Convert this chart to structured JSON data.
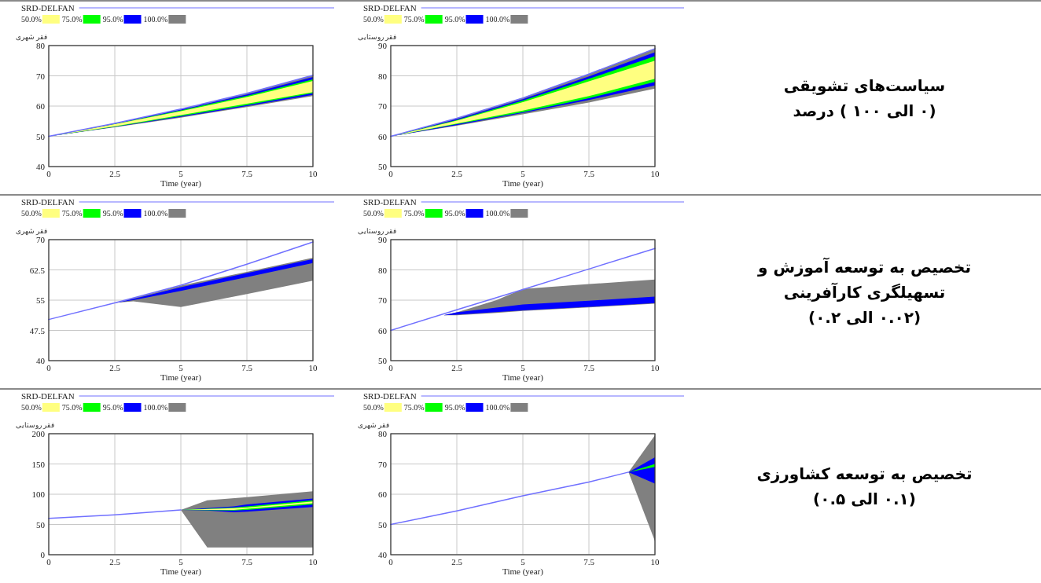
{
  "chart_data": [
    {
      "type": "area",
      "xlabel": "Time (year)",
      "ylabel": "فقر شهری",
      "xlim": [
        0,
        10
      ],
      "xticks": [
        0,
        2.5,
        5,
        7.5,
        10
      ],
      "ylim": [
        40,
        80
      ],
      "yticks": [
        40,
        50,
        60,
        70,
        80
      ],
      "grid": true,
      "legend": "top",
      "series": [
        {
          "name": "SRD-DELFAN",
          "type": "line",
          "color": "#7070ff",
          "x": [
            0,
            2.5,
            5,
            7.5,
            10
          ],
          "values": [
            50,
            54.3,
            59.0,
            64.2,
            70.2
          ]
        },
        {
          "name": "50.0%",
          "type": "area",
          "color": "#ffff80",
          "x": [
            0,
            2.5,
            5,
            7.5,
            10
          ],
          "values": [
            null,
            null,
            null,
            null,
            null
          ],
          "lower": [
            50,
            53.3,
            57.0,
            60.8,
            64.6
          ],
          "upper": [
            50,
            54.0,
            58.3,
            63.0,
            68.3
          ]
        },
        {
          "name": "75.0%",
          "type": "area",
          "color": "#00ff00",
          "x": [
            0,
            2.5,
            5,
            7.5,
            10
          ],
          "values": [
            null,
            null,
            null,
            null,
            null
          ],
          "lower": [
            50,
            53.2,
            56.7,
            60.3,
            64.3
          ],
          "upper": [
            50,
            54.1,
            58.6,
            63.4,
            68.8
          ]
        },
        {
          "name": "95.0%",
          "type": "area",
          "color": "#0000ff",
          "x": [
            0,
            2.5,
            5,
            7.5,
            10
          ],
          "values": [
            null,
            null,
            null,
            null,
            null
          ],
          "lower": [
            50,
            53.1,
            56.4,
            60.0,
            63.7
          ],
          "upper": [
            50,
            54.2,
            58.8,
            63.8,
            69.6
          ]
        },
        {
          "name": "100.0%",
          "type": "area",
          "color": "#808080",
          "x": [
            0,
            2.5,
            5,
            7.5,
            10
          ],
          "values": [
            null,
            null,
            null,
            null,
            null
          ],
          "lower": [
            50,
            53.0,
            56.2,
            59.7,
            63.3
          ],
          "upper": [
            50,
            54.3,
            59.0,
            64.2,
            70.2
          ]
        }
      ]
    },
    {
      "type": "area",
      "xlabel": "Time (year)",
      "ylabel": "فقر روستایی",
      "xlim": [
        0,
        10
      ],
      "xticks": [
        0,
        2.5,
        5,
        7.5,
        10
      ],
      "ylim": [
        50,
        90
      ],
      "yticks": [
        50,
        60,
        70,
        80,
        90
      ],
      "grid": true,
      "legend": "top",
      "series": [
        {
          "name": "SRD-DELFAN",
          "type": "line",
          "color": "#7070ff",
          "x": [
            0,
            2.5,
            5,
            7.5,
            10
          ],
          "values": [
            60,
            66.0,
            72.7,
            80.6,
            89.0
          ]
        },
        {
          "name": "50.0%",
          "type": "area",
          "color": "#ffff80",
          "x": [
            0,
            2.5,
            5,
            7.5,
            10
          ],
          "values": [
            null,
            null,
            null,
            null,
            null
          ],
          "lower": [
            60,
            64.2,
            68.5,
            73.3,
            79.0
          ],
          "upper": [
            60,
            65.2,
            71.3,
            78.2,
            85.0
          ]
        },
        {
          "name": "75.0%",
          "type": "area",
          "color": "#00ff00",
          "x": [
            0,
            2.5,
            5,
            7.5,
            10
          ],
          "values": [
            null,
            null,
            null,
            null,
            null
          ],
          "lower": [
            60,
            64.0,
            68.0,
            72.6,
            78.0
          ],
          "upper": [
            60,
            65.4,
            71.8,
            79.0,
            86.5
          ]
        },
        {
          "name": "95.0%",
          "type": "area",
          "color": "#0000ff",
          "x": [
            0,
            2.5,
            5,
            7.5,
            10
          ],
          "values": [
            null,
            null,
            null,
            null,
            null
          ],
          "lower": [
            60,
            63.7,
            67.7,
            72.0,
            76.8
          ],
          "upper": [
            60,
            65.7,
            72.3,
            79.8,
            87.8
          ]
        },
        {
          "name": "100.0%",
          "type": "area",
          "color": "#808080",
          "x": [
            0,
            2.5,
            5,
            7.5,
            10
          ],
          "values": [
            null,
            null,
            null,
            null,
            null
          ],
          "lower": [
            60,
            63.5,
            67.3,
            71.2,
            75.8
          ],
          "upper": [
            60,
            66.0,
            72.7,
            80.6,
            89.0
          ]
        }
      ]
    },
    {
      "type": "other",
      "annotations": [
        "سیاست‌های تشویقی",
        "(۰ الی ۱۰۰ ) درصد"
      ]
    },
    {
      "type": "area",
      "xlabel": "Time (year)",
      "ylabel": "فقر شهری",
      "xlim": [
        0,
        10
      ],
      "xticks": [
        0,
        2.5,
        5,
        7.5,
        10
      ],
      "ylim": [
        40,
        70
      ],
      "yticks": [
        40,
        47.5,
        55,
        62.5,
        70
      ],
      "grid": true,
      "legend": "top",
      "series": [
        {
          "name": "SRD-DELFAN",
          "type": "line",
          "color": "#7070ff",
          "x": [
            0,
            2.5,
            5,
            7.5,
            10
          ],
          "values": [
            50.2,
            54.3,
            58.7,
            63.9,
            69.4
          ]
        },
        {
          "name": "50.0%",
          "type": "area",
          "color": "#ffff80"
        },
        {
          "name": "75.0%",
          "type": "area",
          "color": "#00ff00"
        },
        {
          "name": "95.0%",
          "type": "area",
          "color": "#0000ff",
          "x": [
            2.5,
            3.2,
            5,
            7.5,
            10
          ],
          "values": [
            null,
            null,
            null,
            null,
            null
          ],
          "lower": [
            54.3,
            55.0,
            57.3,
            60.7,
            64.2
          ],
          "upper": [
            54.3,
            55.3,
            58.2,
            61.7,
            65.2
          ]
        },
        {
          "name": "100.0%",
          "type": "area",
          "color": "#808080",
          "x": [
            2.5,
            3.2,
            5,
            7.5,
            10
          ],
          "values": [
            null,
            null,
            null,
            null,
            null
          ],
          "lower": [
            54.3,
            54.7,
            53.3,
            56.5,
            59.8
          ],
          "upper": [
            54.3,
            55.5,
            58.6,
            62.0,
            65.5
          ]
        }
      ]
    },
    {
      "type": "area",
      "xlabel": "Time (year)",
      "ylabel": "فقر روستایی",
      "xlim": [
        0,
        10
      ],
      "xticks": [
        0,
        2.5,
        5,
        7.5,
        10
      ],
      "ylim": [
        50,
        90
      ],
      "yticks": [
        50,
        60,
        70,
        80,
        90
      ],
      "grid": true,
      "legend": "top",
      "series": [
        {
          "name": "SRD-DELFAN",
          "type": "line",
          "color": "#7070ff",
          "x": [
            0,
            2.5,
            5,
            7.5,
            10
          ],
          "values": [
            60,
            66.8,
            73.5,
            80.3,
            87.1
          ]
        },
        {
          "name": "50.0%",
          "type": "area",
          "color": "#ffff80"
        },
        {
          "name": "75.0%",
          "type": "area",
          "color": "#00ff00"
        },
        {
          "name": "95.0%",
          "type": "area",
          "color": "#0000ff",
          "x": [
            2,
            2.5,
            5,
            7.5,
            10
          ],
          "values": [
            null,
            null,
            null,
            null,
            null
          ],
          "lower": [
            65,
            65.2,
            66.6,
            67.8,
            69.0
          ],
          "upper": [
            65,
            66.0,
            68.6,
            69.8,
            71.2
          ]
        },
        {
          "name": "100.0%",
          "type": "area",
          "color": "#808080",
          "x": [
            2,
            2.5,
            4,
            5,
            7.5,
            10
          ],
          "values": [
            null,
            null,
            null,
            null,
            null,
            null
          ],
          "lower": [
            65,
            65.0,
            65.8,
            66.4,
            67.6,
            68.8
          ],
          "upper": [
            65,
            66.0,
            70.0,
            73.7,
            75.3,
            76.8
          ]
        }
      ]
    },
    {
      "type": "other",
      "annotations": [
        "تخصیص به توسعه آموزش و",
        "تسهیلگری کارآفرینی",
        "(۰.۰۲ الی ۰.۲)"
      ]
    },
    {
      "type": "area",
      "xlabel": "Time (year)",
      "ylabel": "فقر روستایی",
      "xlim": [
        0,
        10
      ],
      "xticks": [
        0,
        2.5,
        5,
        7.5,
        10
      ],
      "ylim": [
        0,
        200
      ],
      "yticks": [
        0,
        50,
        100,
        150,
        200
      ],
      "grid": true,
      "legend": "top",
      "series": [
        {
          "name": "SRD-DELFAN",
          "type": "line",
          "color": "#7070ff",
          "x": [
            0,
            2.5,
            5
          ],
          "values": [
            60,
            66,
            74
          ]
        },
        {
          "name": "50.0%",
          "type": "area",
          "color": "#ffff80",
          "x": [
            5,
            7,
            7.5,
            10
          ],
          "values": [
            null,
            null,
            null,
            null
          ],
          "lower": [
            74,
            74,
            76,
            85
          ],
          "upper": [
            74,
            77,
            78,
            88
          ]
        },
        {
          "name": "75.0%",
          "type": "area",
          "color": "#00ff00",
          "x": [
            5,
            7,
            7.5,
            10
          ],
          "values": [
            null,
            null,
            null,
            null
          ],
          "lower": [
            74,
            73,
            74,
            83
          ],
          "upper": [
            74,
            78,
            80,
            90
          ]
        },
        {
          "name": "95.0%",
          "type": "area",
          "color": "#0000ff",
          "x": [
            5,
            6,
            7,
            7.5,
            10
          ],
          "values": [
            null,
            null,
            null,
            null,
            null
          ],
          "lower": [
            74,
            73,
            70,
            71,
            79
          ],
          "upper": [
            74,
            77,
            80,
            83,
            93
          ]
        },
        {
          "name": "100.0%",
          "type": "area",
          "color": "#808080",
          "x": [
            5,
            6,
            7.5,
            10
          ],
          "values": [
            null,
            null,
            null,
            null
          ],
          "lower": [
            74,
            12,
            12,
            12
          ],
          "upper": [
            74,
            90,
            95,
            105
          ]
        }
      ]
    },
    {
      "type": "area",
      "xlabel": "Time (year)",
      "ylabel": "فقر شهری",
      "xlim": [
        0,
        10
      ],
      "xticks": [
        0,
        2.5,
        5,
        7.5,
        10
      ],
      "ylim": [
        40,
        80
      ],
      "yticks": [
        40,
        50,
        60,
        70,
        80
      ],
      "grid": true,
      "legend": "top",
      "series": [
        {
          "name": "SRD-DELFAN",
          "type": "line",
          "color": "#7070ff",
          "x": [
            0,
            2.5,
            5,
            7.5,
            9
          ],
          "values": [
            50,
            54.5,
            59.5,
            64,
            67.3
          ]
        },
        {
          "name": "50.0%",
          "type": "area",
          "color": "#ffff80"
        },
        {
          "name": "75.0%",
          "type": "area",
          "color": "#00ff00",
          "x": [
            9,
            10
          ],
          "values": [
            null,
            null
          ],
          "lower": [
            67.3,
            69.0
          ],
          "upper": [
            67.3,
            70.0
          ]
        },
        {
          "name": "95.0%",
          "type": "area",
          "color": "#0000ff",
          "x": [
            9,
            10
          ],
          "values": [
            null,
            null
          ],
          "lower": [
            67.3,
            63.5
          ],
          "upper": [
            67.3,
            72.2
          ]
        },
        {
          "name": "100.0%",
          "type": "area",
          "color": "#808080",
          "x": [
            9,
            10
          ],
          "values": [
            null,
            null
          ],
          "lower": [
            67.3,
            44.5
          ],
          "upper": [
            67.3,
            79.5
          ]
        }
      ]
    },
    {
      "type": "other",
      "annotations": [
        "تخصیص به توسعه کشاورزی",
        "(۰.۱ الی ۰.۵)"
      ]
    }
  ]
}
